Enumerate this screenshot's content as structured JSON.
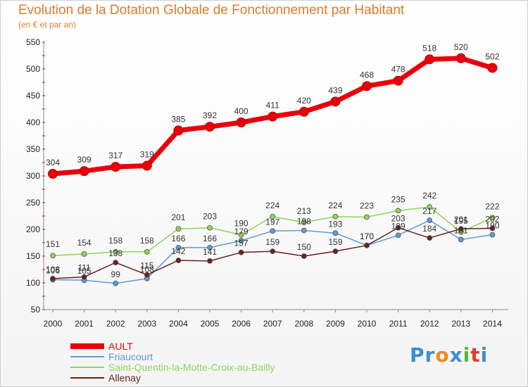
{
  "title": "Evolution de la Dotation Globale de Fonctionnement par Habitant",
  "subtitle": "(en € et par an)",
  "logo": {
    "text": "Proxiti",
    "letter_colors": [
      "#3c8ed8",
      "#3c8ed8",
      "#f08a1c",
      "#3c8ed8",
      "#5cb82e",
      "#e23a2a",
      "#3c8ed8"
    ]
  },
  "chart_data": {
    "type": "line",
    "x": [
      "2000",
      "2001",
      "2002",
      "2003",
      "2004",
      "2005",
      "2006",
      "2007",
      "2008",
      "2009",
      "2010",
      "2011",
      "2012",
      "2013",
      "2014"
    ],
    "ylim": [
      50,
      550
    ],
    "yticks": [
      "50",
      "100",
      "150",
      "200",
      "250",
      "300",
      "350",
      "400",
      "450",
      "500",
      "550"
    ],
    "grid": false,
    "legend_position": "bottom-left",
    "series": [
      {
        "name": "AULT",
        "color": "#e8000b",
        "values": [
          304,
          309,
          317,
          319,
          385,
          392,
          400,
          411,
          420,
          439,
          468,
          478,
          518,
          520,
          502
        ],
        "labels": [
          "304",
          "309",
          "317",
          "319",
          "385",
          "392",
          "400",
          "411",
          "420",
          "439",
          "468",
          "478",
          "518",
          "520",
          "502"
        ]
      },
      {
        "name": "Friaucourt",
        "color": "#5b9bd5",
        "values": [
          106,
          105,
          99,
          108,
          166,
          166,
          179,
          197,
          198,
          193,
          170,
          189,
          217,
          181,
          190
        ],
        "labels": [
          "106",
          "105",
          "99",
          "108",
          "166",
          "166",
          "179",
          "197",
          "198",
          "193",
          "170",
          "189",
          "217",
          "181",
          "190"
        ]
      },
      {
        "name": "Saint-Quentin-la-Motte-Croix-au-Bailly",
        "color": "#8fd45a",
        "values": [
          151,
          154,
          158,
          158,
          201,
          203,
          190,
          224,
          213,
          224,
          223,
          235,
          242,
          195,
          222
        ],
        "labels": [
          "151",
          "154",
          "158",
          "158",
          "201",
          "203",
          "190",
          "224",
          "213",
          "224",
          "223",
          "235",
          "242",
          "195",
          "222"
        ]
      },
      {
        "name": "Allenay",
        "color": "#6b1f1f",
        "values": [
          108,
          111,
          138,
          115,
          142,
          141,
          157,
          159,
          150,
          159,
          170,
          203,
          184,
          201,
          202
        ],
        "labels": [
          "108",
          "111",
          "138",
          "115",
          "142",
          "141",
          "157",
          "159",
          "150",
          "159",
          "170",
          "203",
          "184",
          "201",
          "202"
        ]
      }
    ]
  }
}
